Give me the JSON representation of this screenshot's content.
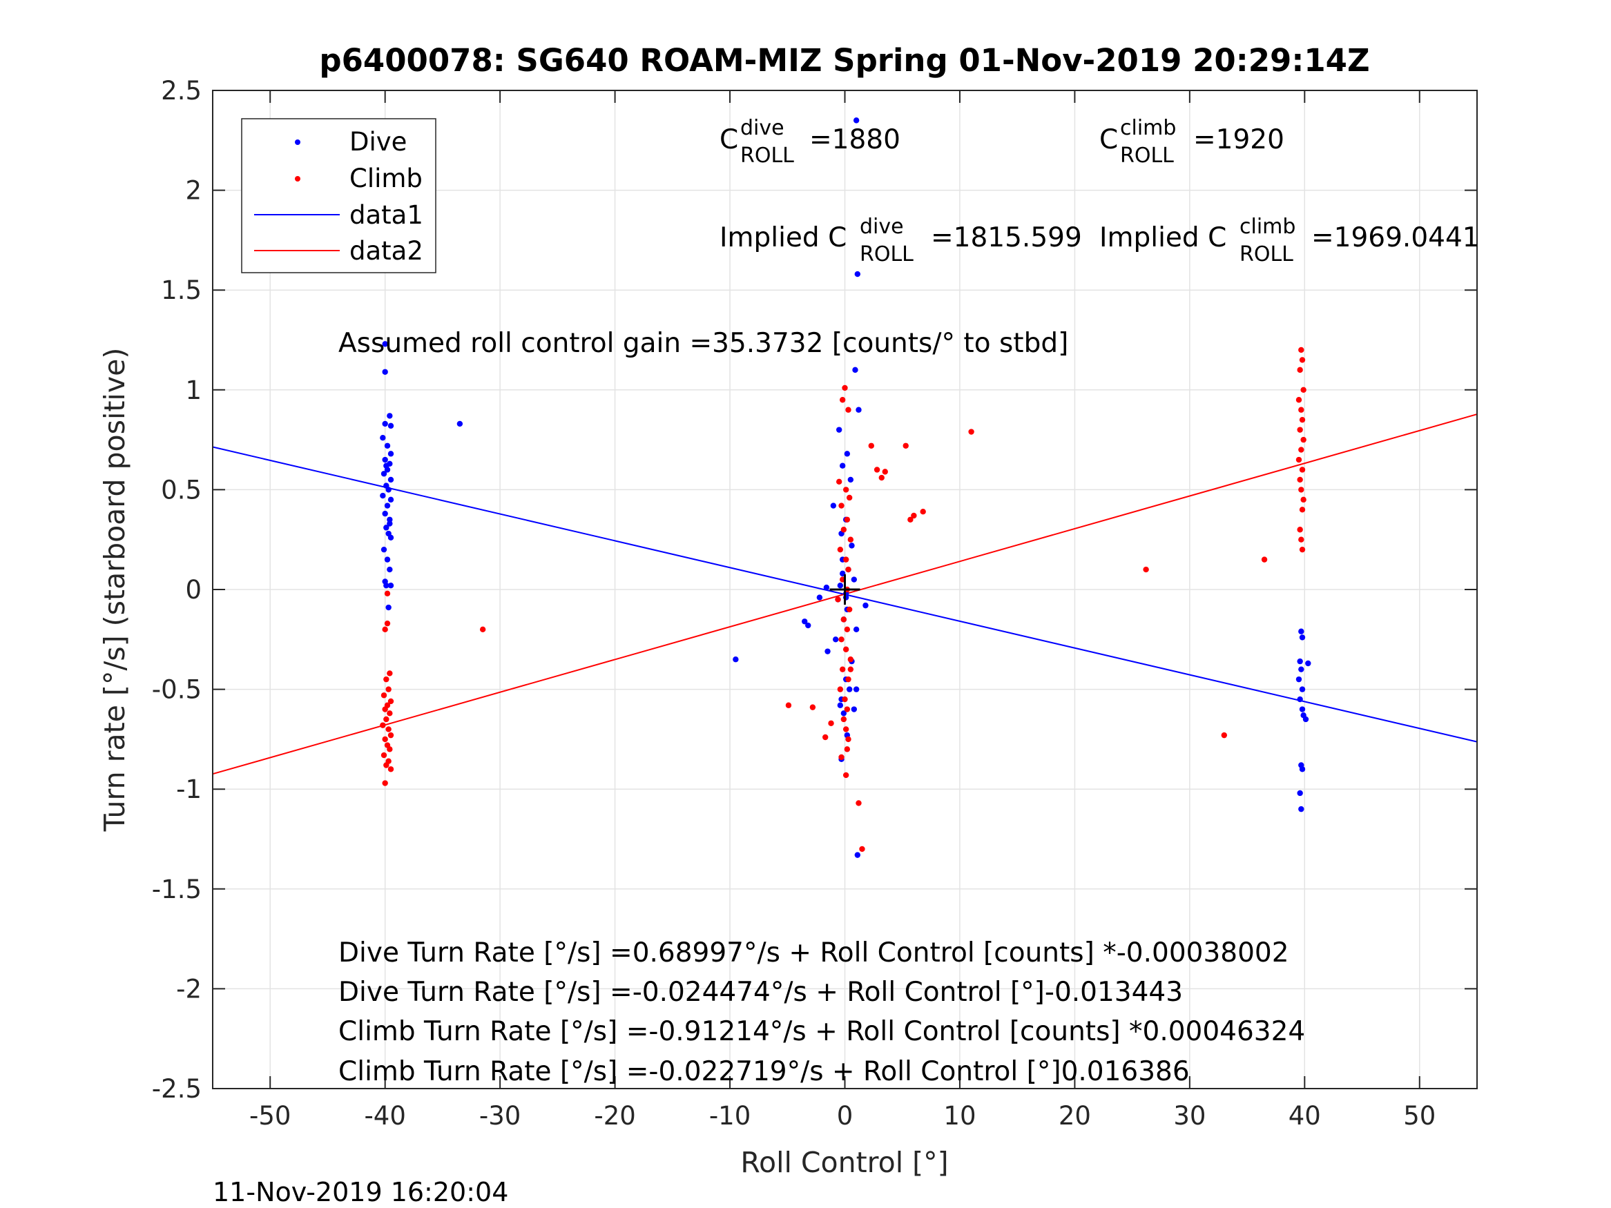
{
  "chart_data": {
    "type": "scatter",
    "title": "p6400078: SG640 ROAM-MIZ Spring 01-Nov-2019 20:29:14Z",
    "xlabel": "Roll Control [°]",
    "ylabel": "Turn rate [°/s] (starboard positive)",
    "xlim": [
      -55,
      55
    ],
    "ylim": [
      -2.5,
      2.5
    ],
    "xticks": [
      -50,
      -40,
      -30,
      -20,
      -10,
      0,
      10,
      20,
      30,
      40,
      50
    ],
    "xtick_labels": [
      "-50",
      "-40",
      "-30",
      "-20",
      "-10",
      "0",
      "10",
      "20",
      "30",
      "40",
      "50"
    ],
    "yticks": [
      2.5,
      2,
      1.5,
      1,
      0.5,
      0,
      -0.5,
      -1,
      -1.5,
      -2,
      -2.5
    ],
    "ytick_labels": [
      "2.5",
      "2",
      "1.5",
      "1",
      "0.5",
      "0",
      "-0.5",
      "-1",
      "-1.5",
      "-2",
      "-2.5"
    ],
    "grid": true,
    "legend": {
      "position": "top-left",
      "entries": [
        {
          "label": "Dive",
          "color": "#0000ff",
          "kind": "marker"
        },
        {
          "label": "Climb",
          "color": "#ff0000",
          "kind": "marker"
        },
        {
          "label": "data1",
          "color": "#0000ff",
          "kind": "line"
        },
        {
          "label": "data2",
          "color": "#ff0000",
          "kind": "line"
        }
      ]
    },
    "series": [
      {
        "name": "Dive",
        "color": "#0000ff",
        "kind": "scatter",
        "x": [
          -40,
          -40,
          -39.6,
          -40,
          -39.5,
          -40.2,
          -39.8,
          -39.5,
          -40,
          -39.6,
          -39.8,
          -40.1,
          -39.5,
          -39.9,
          -39.7,
          -40.2,
          -39.5,
          -39.8,
          -40,
          -39.6,
          -39.9,
          -39.7,
          -39.5,
          -40.1,
          -39.8,
          -39.6,
          -39.9,
          -39.5,
          -40,
          -39.7,
          -39.6,
          -39.9,
          -33.5,
          1,
          1.1,
          0.9,
          1.2,
          -0.5,
          0.2,
          -0.2,
          0.5,
          -1,
          0.1,
          -0.3,
          0.6,
          -0.2,
          0.3,
          0.8,
          -0.4,
          0.1,
          -0.6,
          0.2,
          -0.1,
          1,
          -0.8,
          -1.5,
          1.8,
          -3.5,
          -3.2,
          -9.5,
          -2.2,
          -1.6,
          0.1,
          0.4,
          -0.3,
          1,
          -0.4,
          0.8,
          -0.1,
          0.2,
          -0.3,
          0.6,
          1.1,
          -0.2,
          0.1,
          39.7,
          39.8,
          39.6,
          39.7,
          40.3,
          39.5,
          39.8,
          39.6,
          39.9,
          40.1,
          39.7,
          39.8,
          39.6,
          39.7,
          39.8
        ],
        "y": [
          1.23,
          1.09,
          0.87,
          0.83,
          0.82,
          0.76,
          0.72,
          0.68,
          0.65,
          0.63,
          0.6,
          0.58,
          0.55,
          0.52,
          0.5,
          0.47,
          0.45,
          0.42,
          0.38,
          0.35,
          0.31,
          0.28,
          0.26,
          0.2,
          0.15,
          0.1,
          0.02,
          0.02,
          0.04,
          -0.09,
          0.33,
          0.62,
          0.83,
          2.35,
          1.58,
          1.1,
          0.9,
          0.8,
          0.68,
          0.62,
          0.55,
          0.42,
          0.35,
          0.28,
          0.22,
          0.15,
          0.1,
          0.05,
          0.02,
          -0.02,
          -0.05,
          -0.1,
          -0.15,
          -0.2,
          -0.25,
          -0.31,
          -0.08,
          -0.16,
          -0.18,
          -0.35,
          -0.04,
          0.01,
          -0.45,
          -0.5,
          -0.55,
          -0.5,
          -0.58,
          -0.6,
          -0.62,
          -0.73,
          -0.85,
          -0.36,
          -1.33,
          0.08,
          -0.04,
          -0.21,
          -0.24,
          -0.36,
          -0.4,
          -0.37,
          -0.45,
          -0.5,
          -0.55,
          -0.63,
          -0.65,
          -0.88,
          -0.9,
          -1.02,
          -1.1,
          -0.6
        ]
      },
      {
        "name": "Climb",
        "color": "#ff0000",
        "kind": "scatter",
        "x": [
          -39.8,
          -40,
          -39.6,
          -39.9,
          -39.7,
          -40.1,
          -39.5,
          -39.8,
          -40,
          -39.6,
          -39.9,
          -40.2,
          -39.7,
          -39.5,
          -40,
          -39.8,
          -39.6,
          -40.1,
          -39.7,
          -39.9,
          -39.5,
          -40,
          -39.8,
          -31.5,
          0,
          -0.2,
          0.3,
          -0.5,
          0.1,
          0.4,
          -0.3,
          0.2,
          -0.1,
          0.5,
          -0.4,
          0.1,
          0.3,
          -0.2,
          0.2,
          -0.6,
          0.4,
          -0.1,
          0.2,
          -0.3,
          0.1,
          0.5,
          -0.2,
          0.3,
          -0.4,
          0,
          0.2,
          -0.1,
          0.1,
          0.3,
          -0.3,
          0.1,
          1.2,
          1.5,
          2.3,
          2.8,
          3.2,
          3.5,
          5.3,
          5.7,
          6,
          6.8,
          11,
          -1.2,
          -1.7,
          -2.8,
          -4.9,
          0.2,
          0.5,
          26.2,
          33,
          36.5,
          39.7,
          39.8,
          39.6,
          39.9,
          39.5,
          39.7,
          39.8,
          39.6,
          39.9,
          39.7,
          39.5,
          39.8,
          39.6,
          39.7,
          39.9,
          39.8,
          39.6,
          39.7,
          39.8
        ],
        "y": [
          -0.17,
          -0.2,
          -0.42,
          -0.45,
          -0.5,
          -0.53,
          -0.56,
          -0.58,
          -0.6,
          -0.62,
          -0.65,
          -0.68,
          -0.7,
          -0.73,
          -0.75,
          -0.78,
          -0.8,
          -0.83,
          -0.86,
          -0.88,
          -0.9,
          -0.97,
          -0.02,
          -0.2,
          1.01,
          0.95,
          0.9,
          0.54,
          0.5,
          0.46,
          0.42,
          0.35,
          0.3,
          0.25,
          0.2,
          0.15,
          0.1,
          0.05,
          0,
          -0.05,
          -0.1,
          -0.15,
          -0.2,
          -0.25,
          -0.3,
          -0.35,
          -0.4,
          -0.45,
          -0.5,
          -0.55,
          -0.6,
          -0.65,
          -0.7,
          -0.75,
          -0.84,
          -0.93,
          -1.07,
          -1.3,
          0.72,
          0.6,
          0.56,
          0.59,
          0.72,
          0.35,
          0.37,
          0.39,
          0.79,
          -0.67,
          -0.74,
          -0.59,
          -0.58,
          -0.8,
          -0.4,
          0.1,
          -0.73,
          0.15,
          1.2,
          1.15,
          1.1,
          1,
          0.95,
          0.9,
          0.85,
          0.8,
          0.75,
          0.7,
          0.65,
          0.6,
          0.55,
          0.5,
          0.45,
          0.4,
          0.3,
          0.25,
          0.2
        ],
        "extra_y": [
          0.12,
          0.05,
          -0.02
        ]
      },
      {
        "name": "data1",
        "color": "#0000ff",
        "kind": "line",
        "x": [
          -55,
          55
        ],
        "y": [
          0.714,
          -0.763
        ]
      },
      {
        "name": "data2",
        "color": "#ff0000",
        "kind": "line",
        "x": [
          -55,
          55
        ],
        "y": [
          -0.924,
          0.878
        ]
      }
    ],
    "crosshair": {
      "x": 0,
      "y": 0
    },
    "annotations": {
      "c_dive_base": "C",
      "c_dive_sup": "dive",
      "c_dive_sub": "ROLL",
      "c_dive_value": "=1880",
      "c_climb_base": "C",
      "c_climb_sup": "climb",
      "c_climb_sub": "ROLL",
      "c_climb_value": "=1920",
      "implied_dive_prefix": "Implied C",
      "implied_dive_sup": "dive",
      "implied_dive_sub": "ROLL",
      "implied_dive_value": "=1815.599",
      "implied_climb_prefix": "Implied C",
      "implied_climb_sup": "climb",
      "implied_climb_sub": "ROLL",
      "implied_climb_value": "=1969.0441",
      "gain": "Assumed roll control gain =35.3732 [counts/° to stbd]",
      "eq1": "Dive Turn Rate [°/s] =0.68997°/s + Roll Control [counts] *-0.00038002",
      "eq2": "Dive Turn Rate [°/s] =-0.024474°/s + Roll Control [°]-0.013443",
      "eq3": "Climb Turn Rate [°/s] =-0.91214°/s + Roll Control [counts] *0.00046324",
      "eq4": "Climb Turn Rate [°/s] =-0.022719°/s + Roll Control [°]0.016386"
    }
  },
  "footer": {
    "timestamp": "11-Nov-2019 16:20:04"
  }
}
